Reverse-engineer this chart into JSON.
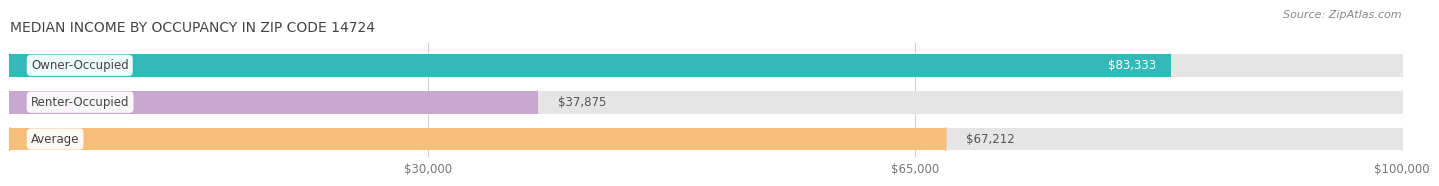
{
  "title": "MEDIAN INCOME BY OCCUPANCY IN ZIP CODE 14724",
  "source": "Source: ZipAtlas.com",
  "categories": [
    "Owner-Occupied",
    "Renter-Occupied",
    "Average"
  ],
  "values": [
    83333,
    37875,
    67212
  ],
  "labels": [
    "$83,333",
    "$37,875",
    "$67,212"
  ],
  "label_inside": [
    true,
    false,
    false
  ],
  "bar_colors": [
    "#35b8b8",
    "#c8a8d0",
    "#f5be7a"
  ],
  "bar_bg_color": "#e5e5e5",
  "xmax": 100000,
  "xticks": [
    30000,
    65000,
    100000
  ],
  "xtick_labels": [
    "$30,000",
    "$65,000",
    "$100,000"
  ],
  "title_fontsize": 10,
  "source_fontsize": 8,
  "label_fontsize": 8.5,
  "cat_fontsize": 8.5,
  "background_color": "#ffffff"
}
